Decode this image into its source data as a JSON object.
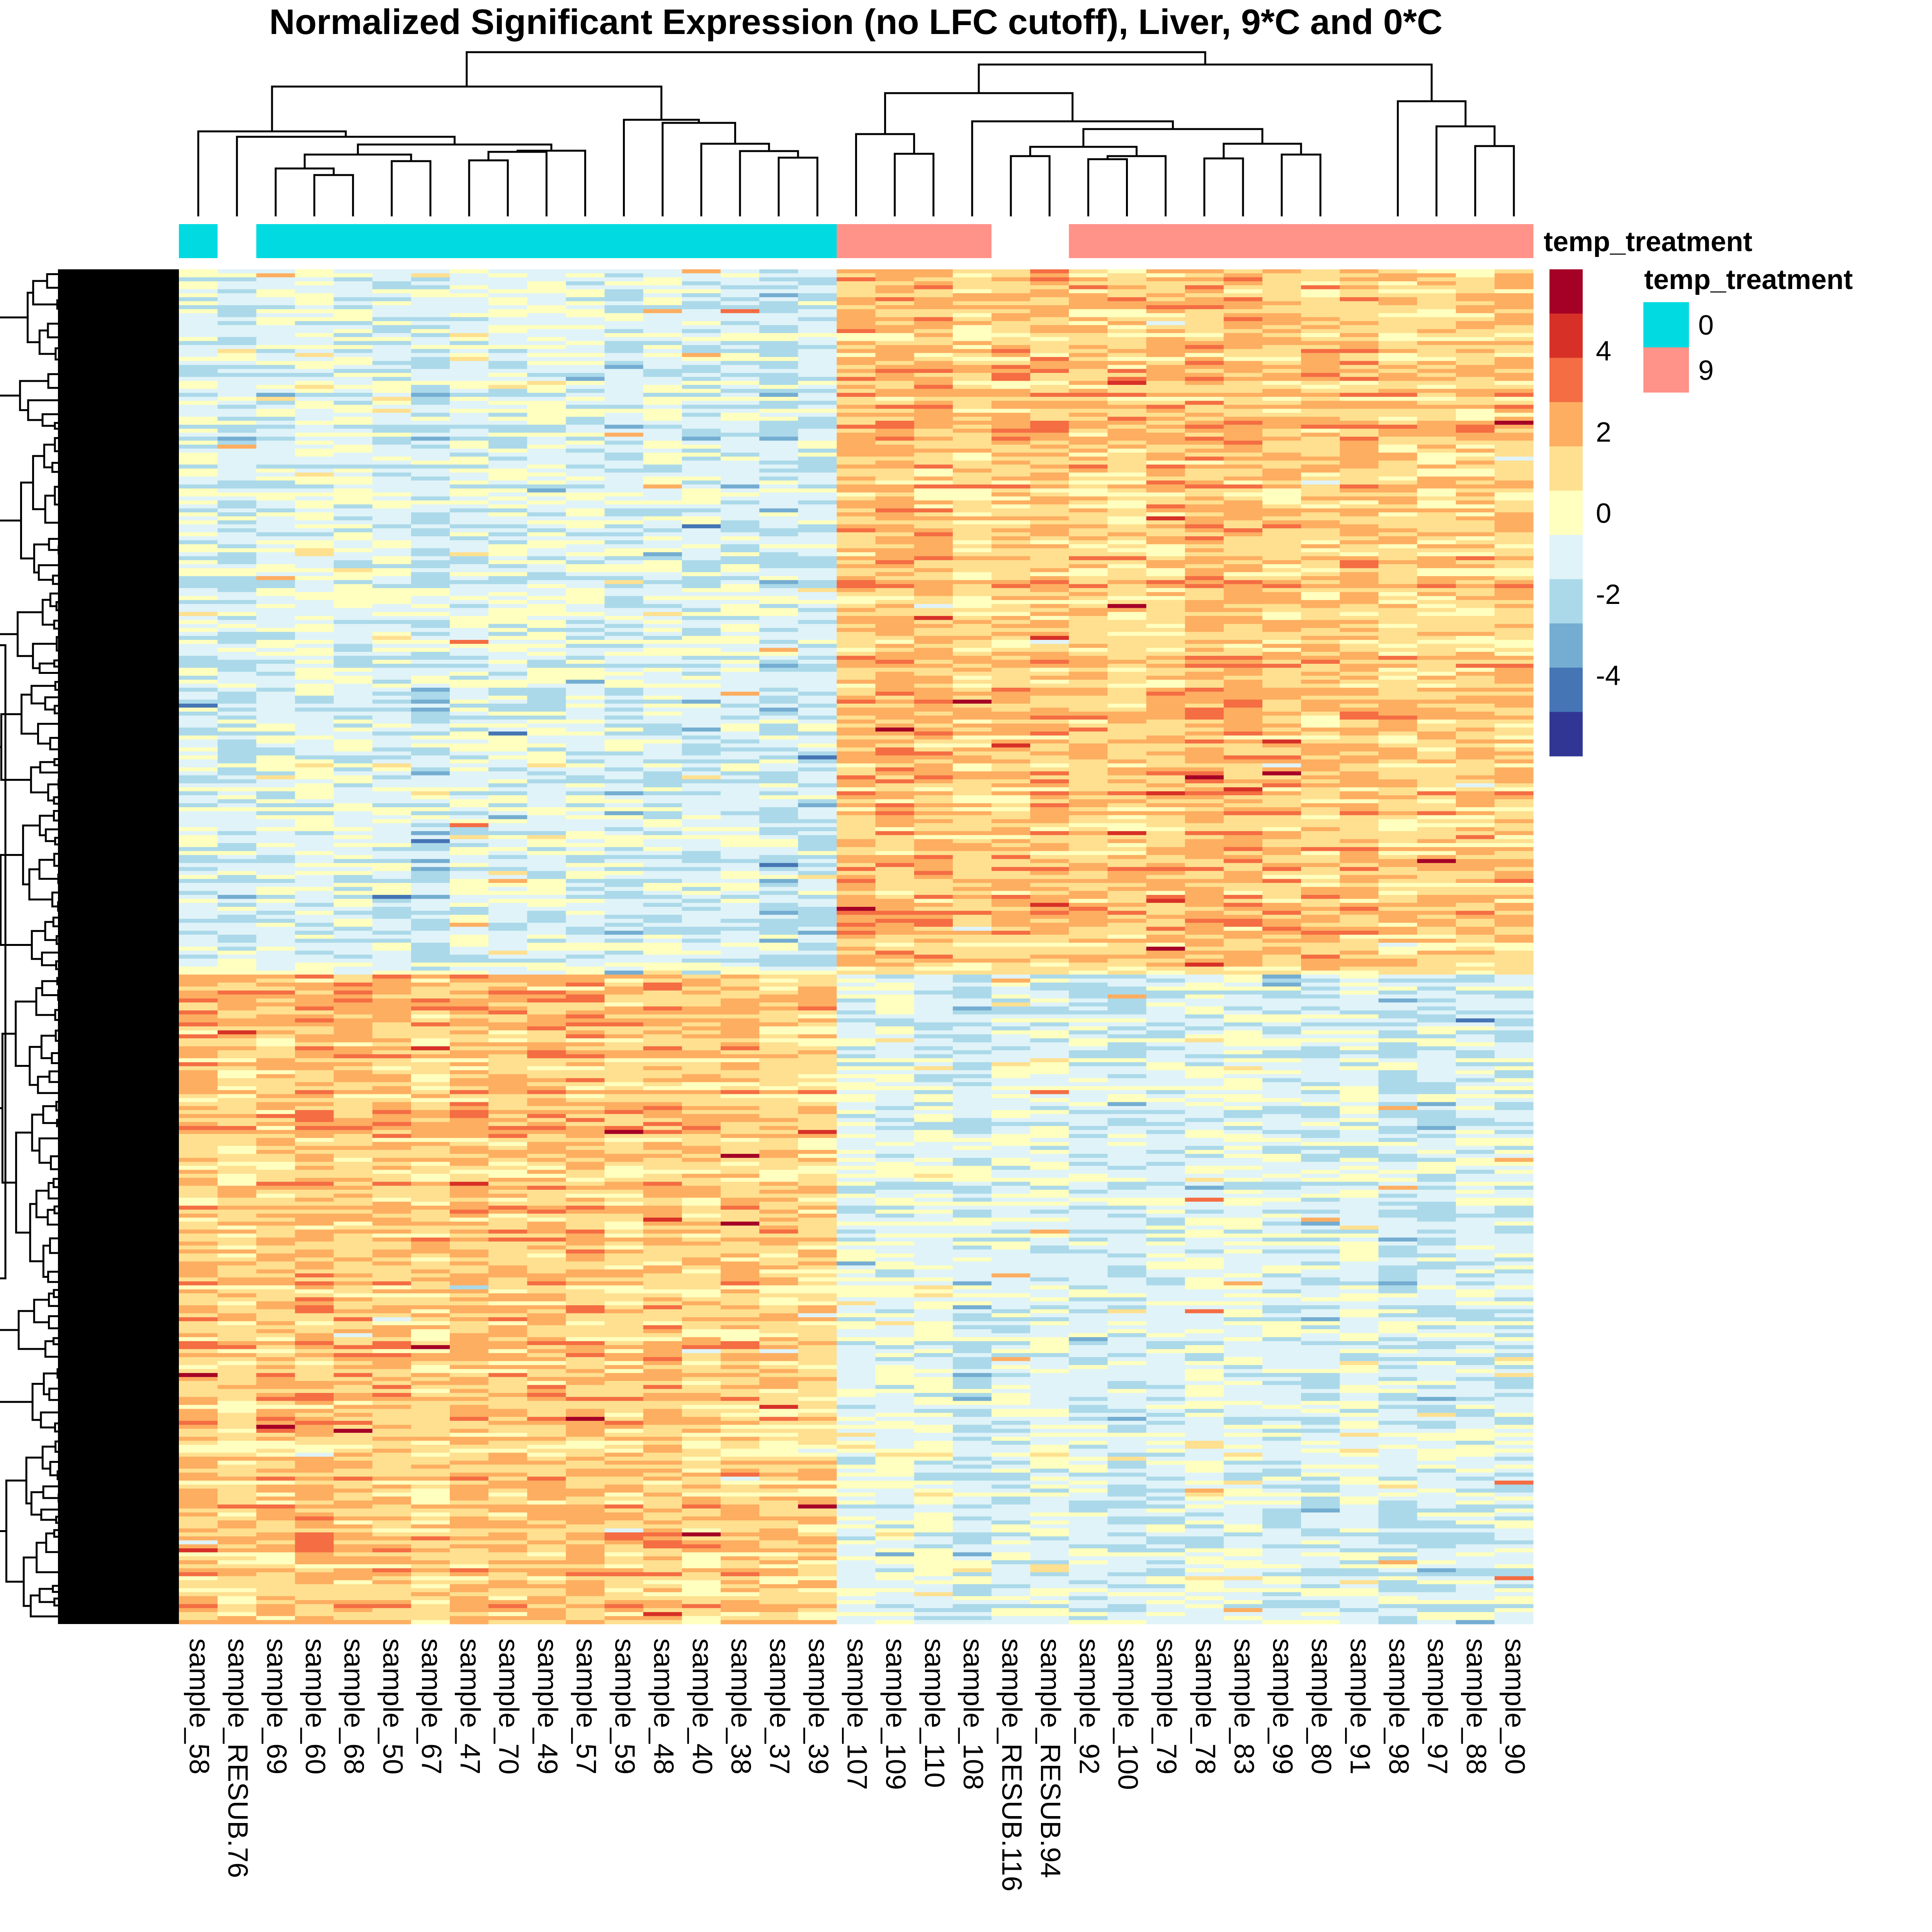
{
  "chart_data": {
    "type": "heatmap",
    "title": "Normalized Significant Expression (no LFC cutoff), Liver, 9*C and 0*C",
    "xlabel": "",
    "ylabel": "",
    "columns": [
      "sample_58",
      "sample_RESUB.76",
      "sample_69",
      "sample_60",
      "sample_68",
      "sample_50",
      "sample_67",
      "sample_47",
      "sample_70",
      "sample_49",
      "sample_57",
      "sample_59",
      "sample_48",
      "sample_40",
      "sample_38",
      "sample_37",
      "sample_39",
      "sample_107",
      "sample_109",
      "sample_110",
      "sample_108",
      "sample_RESUB.116",
      "sample_RESUB.94",
      "sample_92",
      "sample_100",
      "sample_79",
      "sample_78",
      "sample_83",
      "sample_99",
      "sample_80",
      "sample_91",
      "sample_98",
      "sample_97",
      "sample_88",
      "sample_90"
    ],
    "column_annotation": {
      "name": "temp_treatment",
      "values": [
        "0",
        null,
        "0",
        "0",
        "0",
        "0",
        "0",
        "0",
        "0",
        "0",
        "0",
        "0",
        "0",
        "0",
        "0",
        "0",
        "0",
        "9",
        "9",
        "9",
        "9",
        null,
        null,
        "9",
        "9",
        "9",
        "9",
        "9",
        "9",
        "9",
        "9",
        "9",
        "9",
        "9",
        "9"
      ],
      "levels": [
        {
          "label": "0",
          "color": "#00DAE0"
        },
        {
          "label": "9",
          "color": "#FF9289"
        }
      ]
    },
    "row_clusters": {
      "description": "Two major gene clusters: upper block higher in 9°C samples, lower block higher in 0°C samples",
      "upper_block_fraction": 0.52
    },
    "color_scale": {
      "name": "temp_treatment",
      "min": -6,
      "max": 6,
      "ticks": [
        4,
        2,
        0,
        -2,
        -4
      ],
      "bins": [
        "#A50026",
        "#D73027",
        "#F46D43",
        "#FDAE61",
        "#FEE090",
        "#FFFFBF",
        "#E0F3F8",
        "#ABD9E9",
        "#74ADD1",
        "#4575B4",
        "#313695"
      ]
    },
    "legend": {
      "colorbar_title": "temp_treatment",
      "annotation_title": "temp_treatment",
      "placement": "right"
    },
    "column_dendrogram": true,
    "row_dendrogram": true
  }
}
